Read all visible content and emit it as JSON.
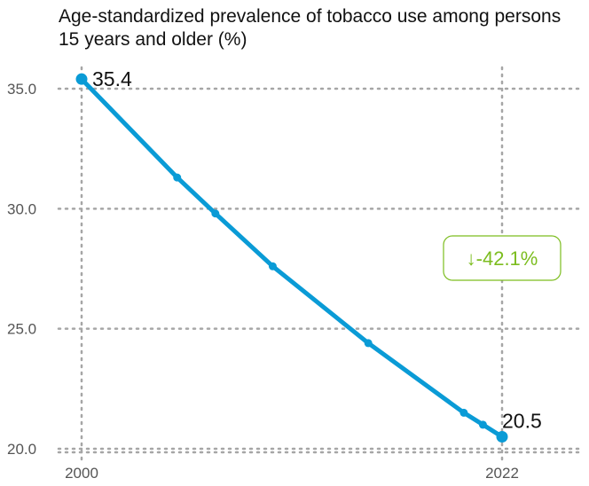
{
  "chart_data": {
    "type": "line",
    "title": "Age-standardized prevalence of tobacco use among persons 15 years and older (%)",
    "xlabel": "",
    "ylabel": "",
    "x_tick_labels": [
      "2000",
      "2022"
    ],
    "y_tick_labels": [
      "35.0",
      "30.0",
      "25.0",
      "20.0"
    ],
    "xlim": [
      2000,
      2022
    ],
    "ylim": [
      20.0,
      35.0
    ],
    "grid": true,
    "series": [
      {
        "x": [
          2000,
          2005,
          2007,
          2010,
          2015,
          2020,
          2021,
          2022
        ],
        "y": [
          35.4,
          31.3,
          29.8,
          27.6,
          24.4,
          21.5,
          21.0,
          20.5
        ]
      }
    ],
    "annotations": {
      "start_value": "35.4",
      "end_value": "20.5",
      "change": "-42.1%",
      "change_arrow": "↓"
    },
    "colors": {
      "line": "#0a9bd6",
      "change": "#7cbd1f",
      "grid": "#a6a6a6"
    }
  }
}
